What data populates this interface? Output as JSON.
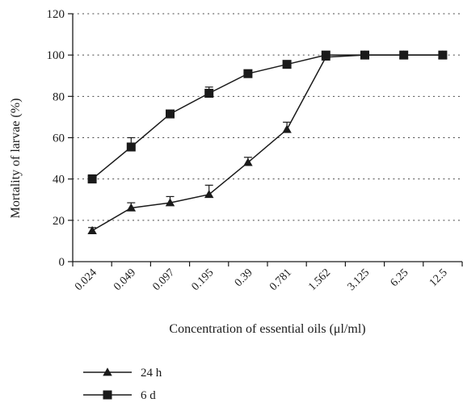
{
  "chart_data": {
    "type": "line",
    "xlabel": "Concentration of essential oils (μl/ml)",
    "ylabel": "Mortality of larvae (%)",
    "categories": [
      "0.024",
      "0.049",
      "0.097",
      "0.195",
      "0.39",
      "0.781",
      "1.562",
      "3.125",
      "6.25",
      "12.5"
    ],
    "ylim": [
      0,
      120
    ],
    "yticks": [
      0,
      20,
      40,
      60,
      80,
      100,
      120
    ],
    "grid": "horizontal-dotted",
    "legend_position": "bottom-left",
    "series": [
      {
        "name": "24 h",
        "marker": "triangle",
        "values": [
          15,
          26,
          28.5,
          32.5,
          48,
          64,
          99,
          100,
          100,
          100
        ],
        "errors": [
          1.5,
          2.5,
          3,
          4.5,
          2.5,
          3.5,
          1,
          0,
          0,
          0
        ]
      },
      {
        "name": "6 d",
        "marker": "square",
        "values": [
          40,
          55.5,
          71.5,
          81.5,
          91,
          95.5,
          100,
          100,
          100,
          100
        ],
        "errors": [
          2,
          4.5,
          1,
          3,
          1.5,
          1,
          0,
          0,
          0,
          0
        ]
      }
    ],
    "colors": {
      "line": "#1a1a1a",
      "grid": "#444444"
    }
  }
}
